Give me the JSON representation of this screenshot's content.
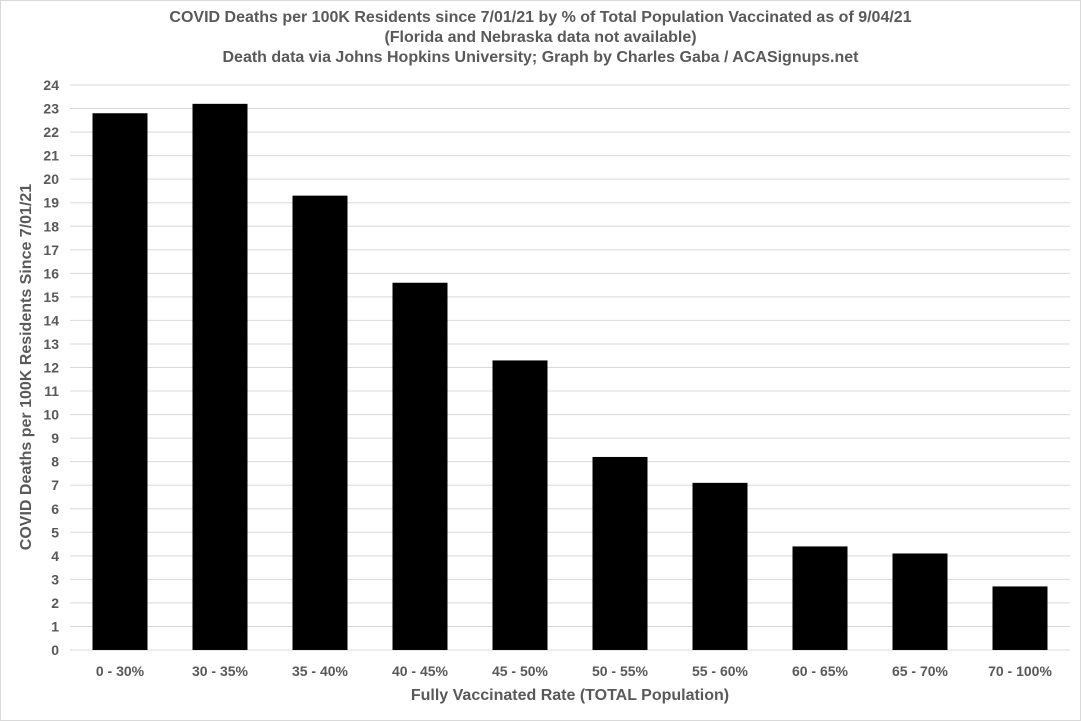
{
  "chart_data": {
    "type": "bar",
    "title": "COVID Deaths per 100K Residents since 7/01/21 by % of Total Population Vaccinated as of 9/04/21",
    "subtitle": "(Florida and Nebraska data not available)",
    "subtitle2": "Death data via Johns Hopkins University; Graph by Charles Gaba / ACASignups.net",
    "xlabel": "Fully Vaccinated Rate (TOTAL Population)",
    "ylabel": "COVID Deaths per 100K Residents Since 7/01/21",
    "categories": [
      "0 - 30%",
      "30 - 35%",
      "35 - 40%",
      "40 - 45%",
      "45 - 50%",
      "50 - 55%",
      "55 - 60%",
      "60 - 65%",
      "65 - 70%",
      "70 - 100%"
    ],
    "values": [
      22.8,
      23.2,
      19.3,
      15.6,
      12.3,
      8.2,
      7.1,
      4.4,
      4.1,
      2.7
    ],
    "ylim": [
      0,
      24
    ],
    "ytick_step": 1,
    "grid": true,
    "bar_color": "#000000",
    "grid_color": "#d9d9d9"
  }
}
